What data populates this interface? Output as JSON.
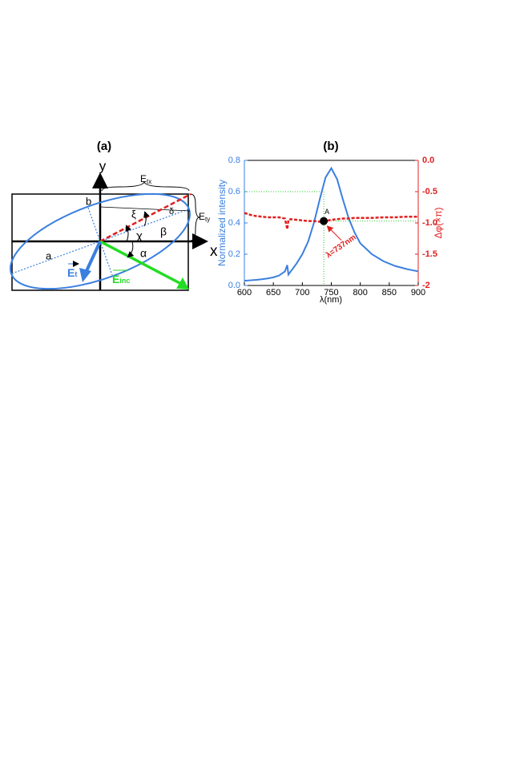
{
  "diagram": {
    "title": "(a)",
    "y_axis": "y",
    "x_axis": "x",
    "etx_main": "E",
    "etx_sub": "tx",
    "ety_main": "E",
    "ety_sub": "ty",
    "b": "b",
    "a": "a",
    "xi": "ξ",
    "chi": "χ",
    "beta": "β",
    "alpha": "α",
    "delta": "δ",
    "et_main": "E",
    "et_sub": "t",
    "einc_main": "E",
    "einc_sub": "inc"
  },
  "chart_data": {
    "type": "line",
    "title": "(b)",
    "xlabel": "λ(nm)",
    "ylabel": "Normalized intensity",
    "y2label": "Δφ(×π)",
    "x": [
      600,
      610,
      620,
      630,
      640,
      650,
      660,
      670,
      674,
      676,
      680,
      690,
      700,
      710,
      720,
      730,
      740,
      750,
      760,
      770,
      780,
      790,
      800,
      820,
      840,
      860,
      880,
      900
    ],
    "series": [
      {
        "color": "#3a7fe0",
        "values": [
          0.03,
          0.033,
          0.036,
          0.04,
          0.045,
          0.052,
          0.064,
          0.09,
          0.13,
          0.07,
          0.09,
          0.14,
          0.2,
          0.28,
          0.4,
          0.55,
          0.69,
          0.75,
          0.68,
          0.55,
          0.43,
          0.34,
          0.27,
          0.2,
          0.155,
          0.125,
          0.105,
          0.09
        ]
      },
      {
        "color": "#e02020",
        "axis": "y2",
        "dashed": true,
        "values": [
          -0.84,
          -0.87,
          -0.89,
          -0.9,
          -0.91,
          -0.91,
          -0.91,
          -0.93,
          -1.1,
          -0.95,
          -0.94,
          -0.95,
          -0.96,
          -0.97,
          -0.97,
          -0.98,
          -0.97,
          -0.95,
          -0.94,
          -0.93,
          -0.93,
          -0.92,
          -0.92,
          -0.92,
          -0.91,
          -0.91,
          -0.9,
          -0.9
        ]
      }
    ],
    "xlim": [
      600,
      900
    ],
    "xticks": [
      600,
      650,
      700,
      750,
      800,
      850,
      900
    ],
    "ylim": [
      0,
      0.8
    ],
    "yticks": [
      {
        "value": 0,
        "label": "0.0"
      },
      0.2,
      0.4,
      0.6,
      0.8
    ],
    "y2lim": [
      -2,
      0
    ],
    "y2ticks": [
      {
        "value": -2,
        "label": "-2"
      },
      -1.5,
      {
        "value": -1,
        "label": "-1.0"
      },
      -0.5,
      {
        "value": 0,
        "label": "0.0"
      }
    ],
    "guides": {
      "color": "#22cc22",
      "x": 737,
      "y": 0.6,
      "y2": -0.97
    },
    "point": {
      "label": "A",
      "x": 737,
      "y2": -0.97
    },
    "annotation": "λ=737nm"
  }
}
